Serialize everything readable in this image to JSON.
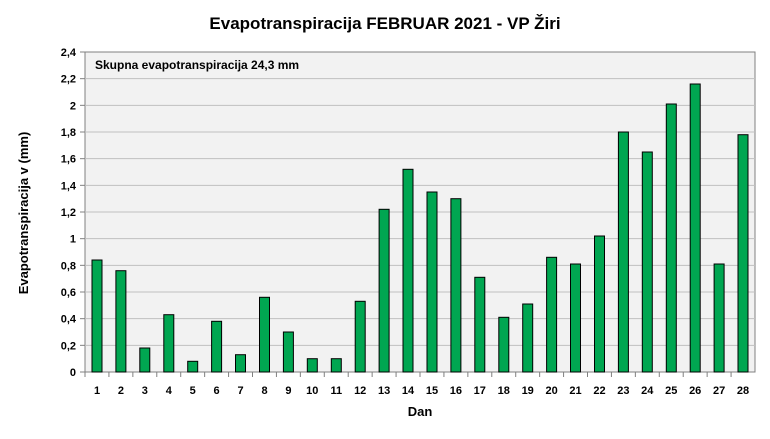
{
  "chart_data": {
    "type": "bar",
    "title": "Evapotranspiracija  FEBRUAR 2021 - VP Žiri",
    "xlabel": "Dan",
    "ylabel": "Evapotranspiracija v  (mm)",
    "annotation": "Skupna evapotranspiracija  24,3 mm",
    "categories": [
      "1",
      "2",
      "3",
      "4",
      "5",
      "6",
      "7",
      "8",
      "9",
      "10",
      "11",
      "12",
      "13",
      "14",
      "15",
      "16",
      "17",
      "18",
      "19",
      "20",
      "21",
      "22",
      "23",
      "24",
      "25",
      "26",
      "27",
      "28"
    ],
    "values": [
      0.84,
      0.76,
      0.18,
      0.43,
      0.08,
      0.38,
      0.13,
      0.56,
      0.3,
      0.1,
      0.1,
      0.53,
      1.22,
      1.52,
      1.35,
      1.3,
      0.71,
      0.41,
      0.51,
      0.86,
      0.81,
      1.02,
      1.8,
      1.65,
      2.01,
      2.16,
      0.81,
      1.78
    ],
    "ylim": [
      0,
      2.4
    ],
    "ytick_step": 0.2,
    "ytick_labels": [
      "0",
      "0,2",
      "0,4",
      "0,6",
      "0,8",
      "1",
      "1,2",
      "1,4",
      "1,6",
      "1,8",
      "2",
      "2,2",
      "2,4"
    ],
    "grid": true,
    "colors": {
      "bar_fill": "#00a651",
      "bar_stroke": "#000000",
      "plot_background": "#f2f2f2",
      "grid": "#c0c0c0",
      "axis": "#808080"
    }
  }
}
